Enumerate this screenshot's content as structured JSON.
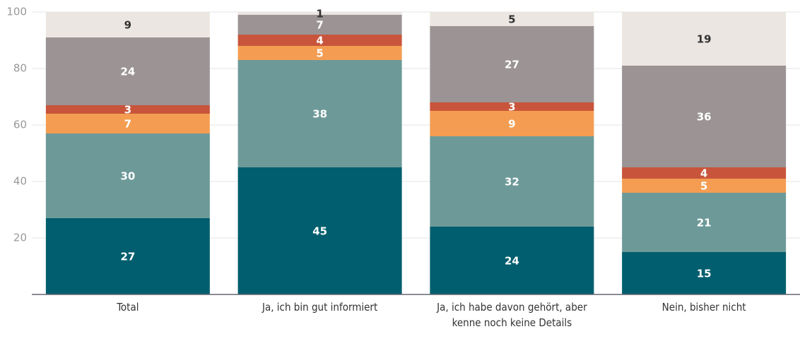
{
  "chart_data": {
    "type": "stacked_bar",
    "categories": [
      "Total",
      "Ja, ich bin gut informiert",
      "Ja, ich habe davon gehört, aber kenne noch keine Details",
      "Nein, bisher nicht"
    ],
    "series": [
      {
        "color": "#005e6e",
        "label_color": "#ffffff",
        "values": [
          27,
          45,
          24,
          15
        ]
      },
      {
        "color": "#6d9a98",
        "label_color": "#ffffff",
        "values": [
          30,
          38,
          32,
          21
        ]
      },
      {
        "color": "#f49d52",
        "label_color": "#ffffff",
        "values": [
          7,
          5,
          9,
          5
        ]
      },
      {
        "color": "#c8553b",
        "label_color": "#ffffff",
        "values": [
          3,
          4,
          3,
          4
        ]
      },
      {
        "color": "#9c9494",
        "label_color": "#ffffff",
        "values": [
          24,
          7,
          27,
          36
        ]
      },
      {
        "color": "#ebe6e1",
        "label_color": "#333333",
        "values": [
          9,
          1,
          5,
          19
        ]
      }
    ],
    "ylim": [
      0,
      100
    ],
    "yticks": [
      20,
      40,
      60,
      80,
      100
    ],
    "grid": true
  }
}
